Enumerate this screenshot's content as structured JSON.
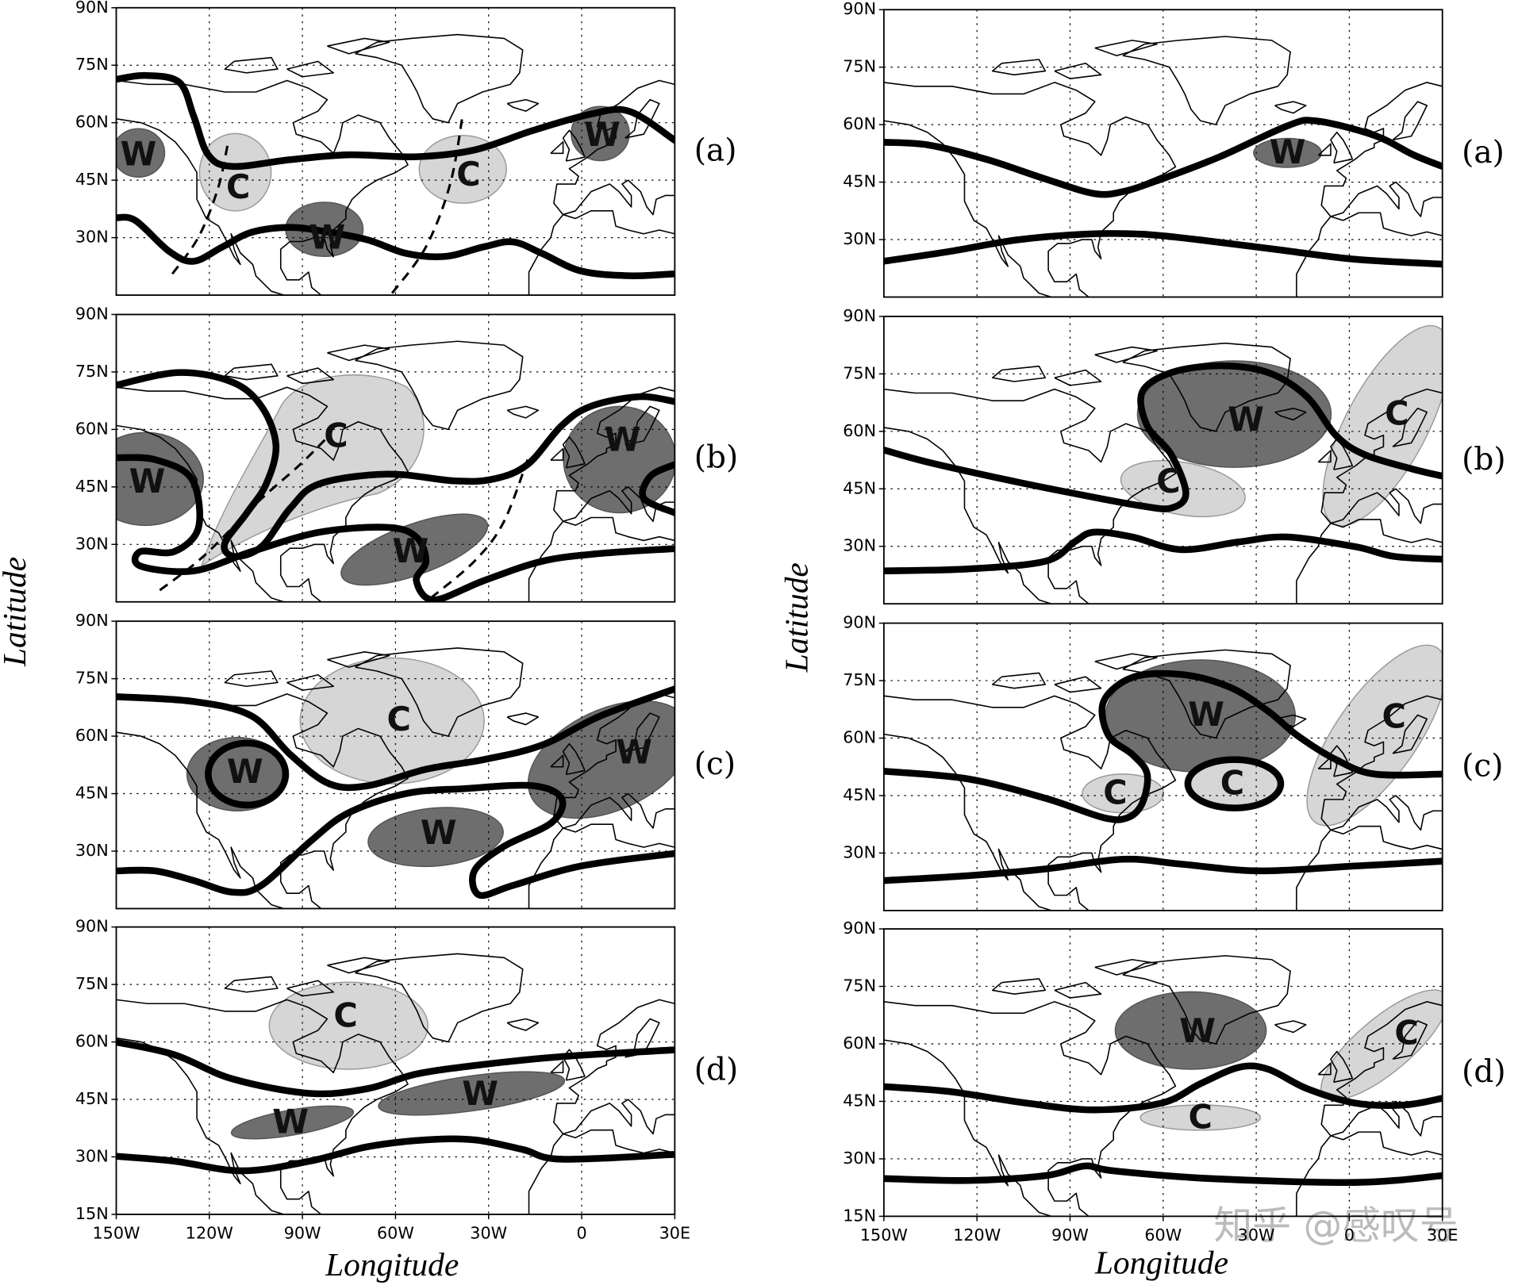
{
  "lat_ticks": [
    "90N",
    "75N",
    "60N",
    "45N",
    "30N",
    "15N"
  ],
  "lon_ticks": [
    "150W",
    "120W",
    "90W",
    "60W",
    "30W",
    "0",
    "30E"
  ],
  "left": {
    "y_axis_label": "Latitude",
    "x_axis_label": "Longitude",
    "panels": [
      {
        "label": "(a)",
        "regions": [
          "W",
          "C",
          "C",
          "W",
          "W"
        ]
      },
      {
        "label": "(b)",
        "regions": [
          "W",
          "C",
          "W",
          "W"
        ]
      },
      {
        "label": "(c)",
        "regions": [
          "W",
          "C",
          "W",
          "W"
        ]
      },
      {
        "label": "(d)",
        "regions": [
          "C",
          "W",
          "W"
        ]
      }
    ]
  },
  "right": {
    "y_axis_label": "Latitude",
    "x_axis_label": "Longitude",
    "panels": [
      {
        "label": "(a)",
        "regions": [
          "W"
        ]
      },
      {
        "label": "(b)",
        "regions": [
          "W",
          "C",
          "C"
        ]
      },
      {
        "label": "(c)",
        "regions": [
          "W",
          "C",
          "C",
          "C"
        ]
      },
      {
        "label": "(d)",
        "regions": [
          "W",
          "C",
          "C"
        ]
      }
    ]
  },
  "watermark": "知乎 @感叹号"
}
